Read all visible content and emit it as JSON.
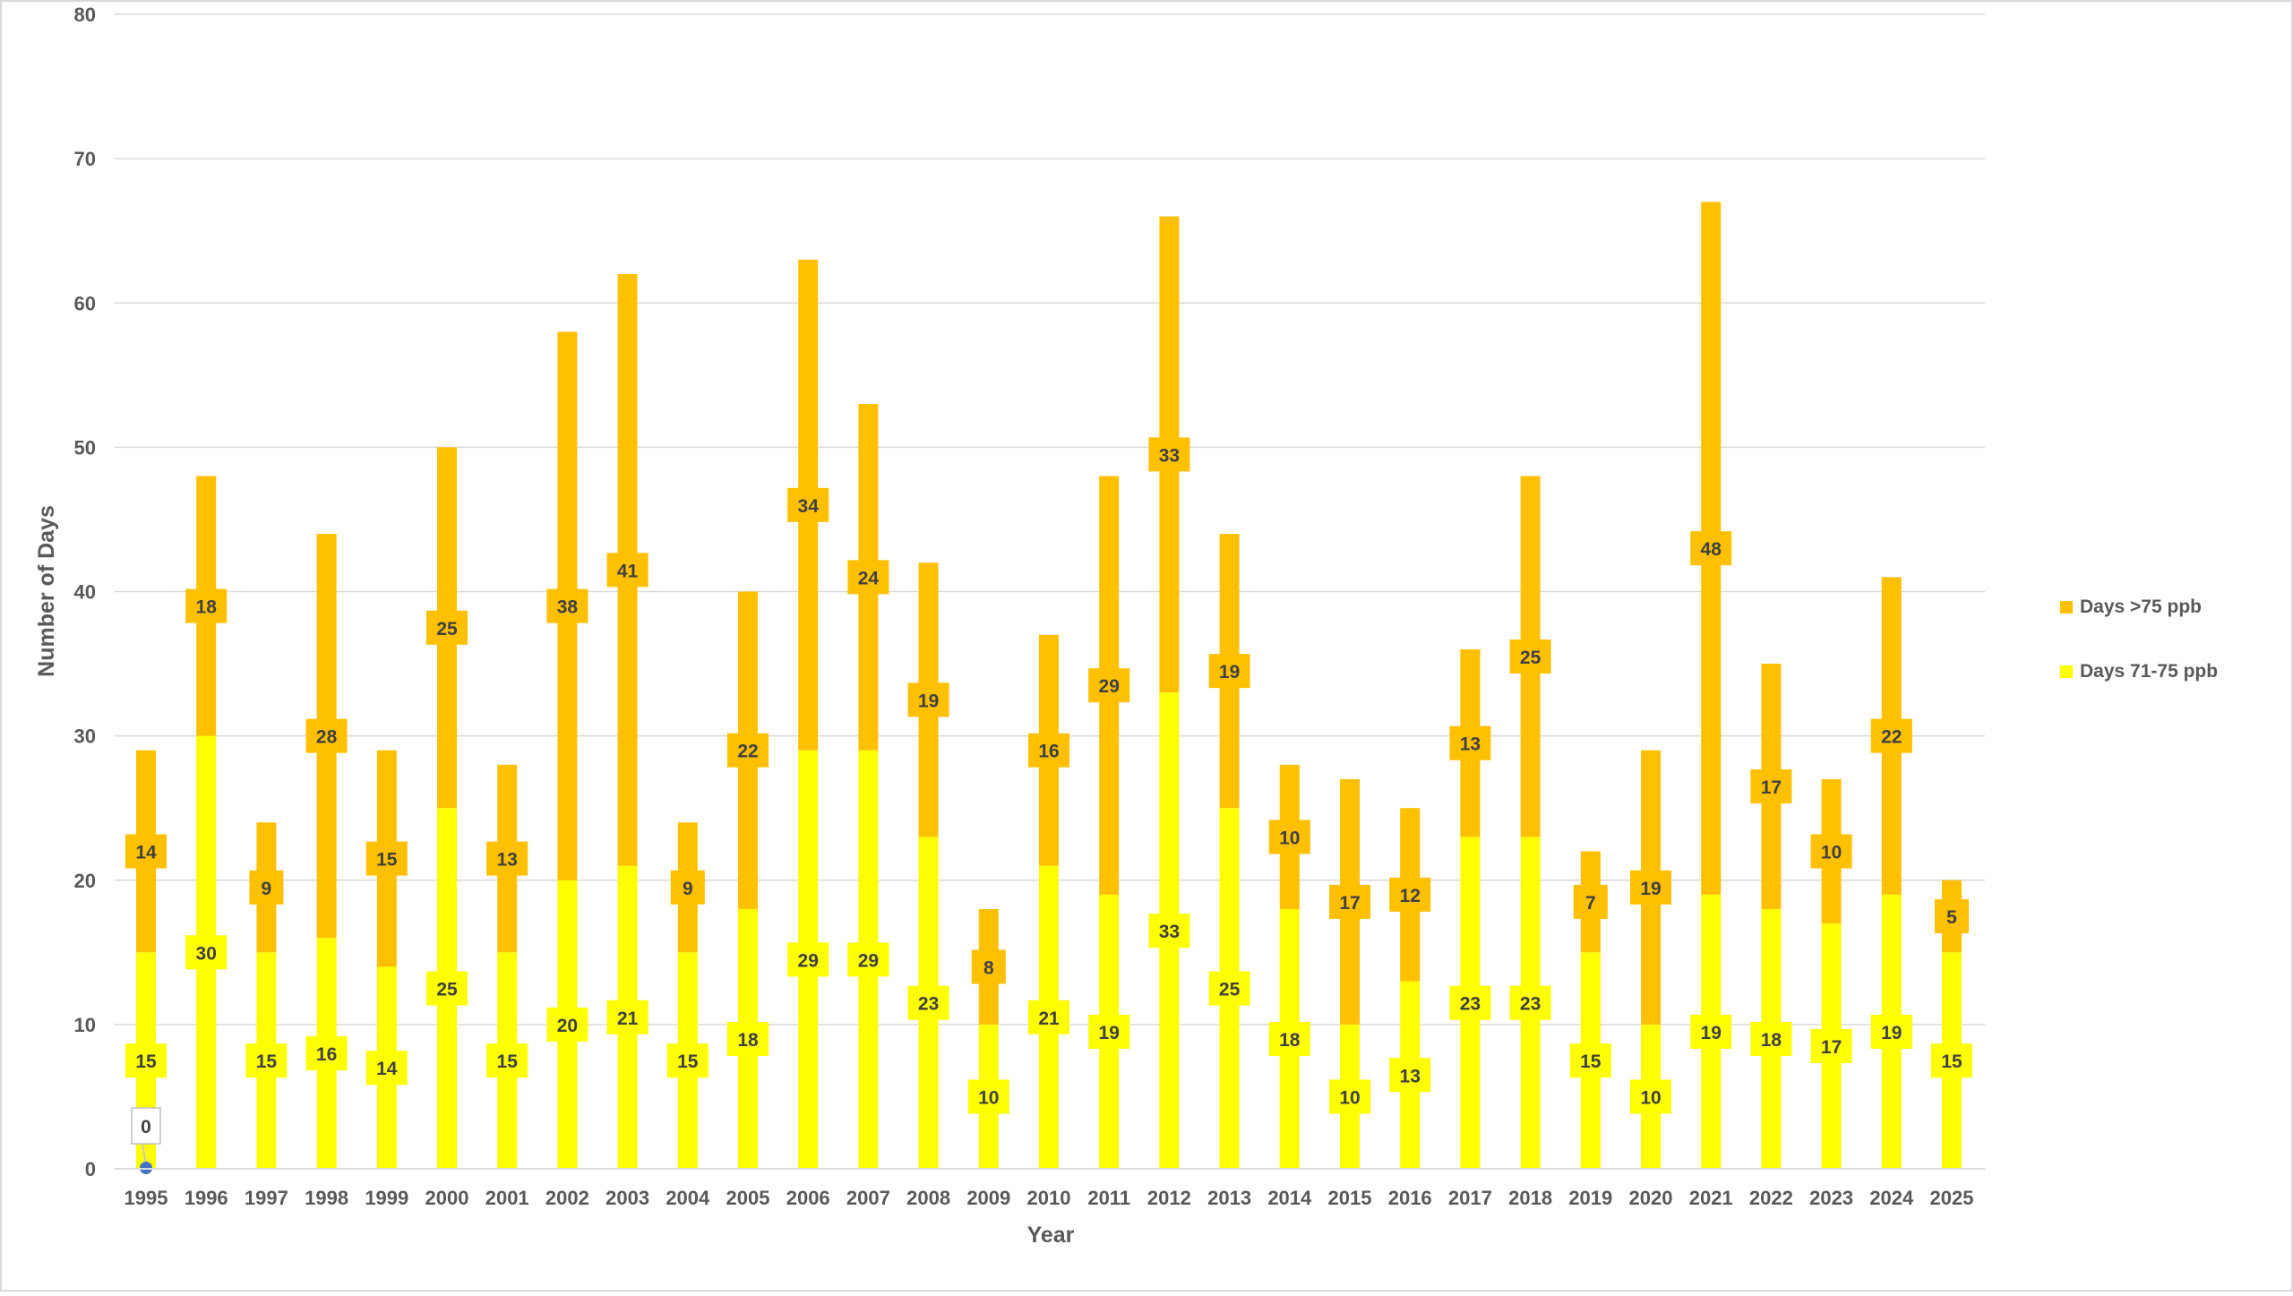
{
  "chart_data": {
    "type": "bar",
    "stacked": true,
    "title": "",
    "xlabel": "Year",
    "ylabel": "Number of Days",
    "ylim": [
      0,
      80
    ],
    "yticks": [
      0,
      10,
      20,
      30,
      40,
      50,
      60,
      70,
      80
    ],
    "grid": true,
    "legend_position": "right",
    "categories": [
      "1995",
      "1996",
      "1997",
      "1998",
      "1999",
      "2000",
      "2001",
      "2002",
      "2003",
      "2004",
      "2005",
      "2006",
      "2007",
      "2008",
      "2009",
      "2010",
      "2011",
      "2012",
      "2013",
      "2014",
      "2015",
      "2016",
      "2017",
      "2018",
      "2019",
      "2020",
      "2021",
      "2022",
      "2023",
      "2024",
      "2025"
    ],
    "series": [
      {
        "name": "Days 71-75 ppb",
        "color": "#FFFF00",
        "values": [
          15,
          30,
          15,
          16,
          14,
          25,
          15,
          20,
          21,
          15,
          18,
          29,
          29,
          23,
          10,
          21,
          19,
          33,
          25,
          18,
          10,
          13,
          23,
          23,
          15,
          10,
          19,
          18,
          17,
          19,
          15
        ]
      },
      {
        "name": "Days >75 ppb",
        "color": "#FFC000",
        "values": [
          14,
          18,
          9,
          28,
          15,
          25,
          13,
          38,
          41,
          9,
          22,
          34,
          24,
          19,
          8,
          16,
          29,
          33,
          19,
          10,
          17,
          12,
          13,
          25,
          7,
          19,
          48,
          17,
          10,
          22,
          5
        ]
      }
    ],
    "annotations": [
      {
        "category": "1995",
        "value": 0,
        "label": "0",
        "marker_color": "#4472C4"
      }
    ]
  }
}
